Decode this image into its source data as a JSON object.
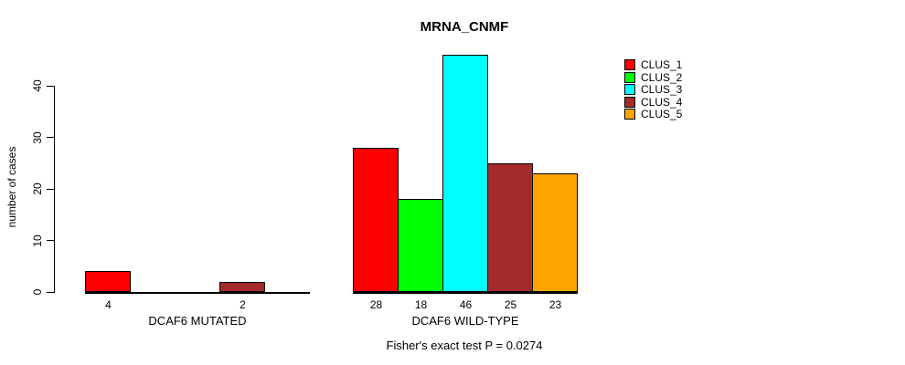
{
  "chart_data": {
    "type": "bar",
    "title": "MRNA_CNMF",
    "ylabel": "number of cases",
    "ylim": [
      0,
      46
    ],
    "yticks": [
      0,
      10,
      20,
      30,
      40
    ],
    "grid": false,
    "legend_position": "right",
    "clusters": [
      {
        "name": "CLUS_1",
        "color": "#ff0000"
      },
      {
        "name": "CLUS_2",
        "color": "#00ff00"
      },
      {
        "name": "CLUS_3",
        "color": "#00ffff"
      },
      {
        "name": "CLUS_4",
        "color": "#a52a2a"
      },
      {
        "name": "CLUS_5",
        "color": "#ffa500"
      }
    ],
    "groups": [
      {
        "label": "DCAF6 MUTATED",
        "values": [
          4,
          0,
          0,
          2,
          0
        ]
      },
      {
        "label": "DCAF6 WILD-TYPE",
        "values": [
          28,
          18,
          46,
          25,
          23
        ]
      }
    ],
    "annotation": "Fisher's exact test P = 0.0274"
  }
}
